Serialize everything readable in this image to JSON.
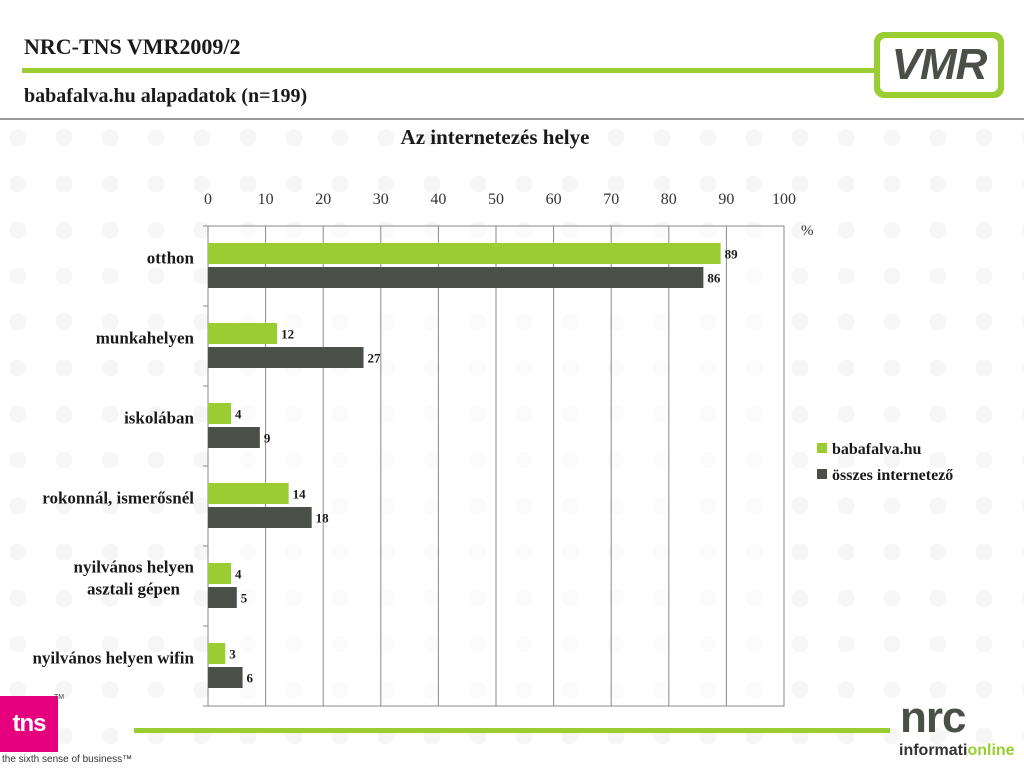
{
  "header": {
    "title": "NRC-TNS VMR2009/2",
    "subtitle": "babafalva.hu alapadatok (n=199)",
    "logo_text": "VMR"
  },
  "footer": {
    "tns_logo_text": "tns",
    "tns_tm": "TM",
    "tns_tagline": "the sixth sense of business™",
    "nrc_logo_text": "nrc",
    "nrc_sub_part1": "informati",
    "nrc_sub_part2": "online"
  },
  "colors": {
    "accent_green": "#9ACD32",
    "series_1": "#9ACD32",
    "series_2": "#4A4F48",
    "tns_pink": "#E6007E"
  },
  "chart_data": {
    "type": "bar",
    "orientation": "horizontal",
    "title": "Az internetezés helye",
    "unit": "%",
    "xlim": [
      0,
      100
    ],
    "x_ticks": [
      0,
      10,
      20,
      30,
      40,
      50,
      60,
      70,
      80,
      90,
      100
    ],
    "grid": true,
    "legend_position": "right",
    "categories": [
      [
        "otthon"
      ],
      [
        "munkahelyen"
      ],
      [
        "iskolában"
      ],
      [
        "rokonnál, ismerősnél"
      ],
      [
        "nyilvános helyen",
        "asztali gépen"
      ],
      [
        "nyilvános helyen wifin"
      ]
    ],
    "series": [
      {
        "name": "babafalva.hu",
        "color": "#9ACD32",
        "values": [
          89,
          12,
          4,
          14,
          4,
          3
        ]
      },
      {
        "name": "összes internetező",
        "color": "#4A4F48",
        "values": [
          86,
          27,
          9,
          18,
          5,
          6
        ]
      }
    ]
  }
}
